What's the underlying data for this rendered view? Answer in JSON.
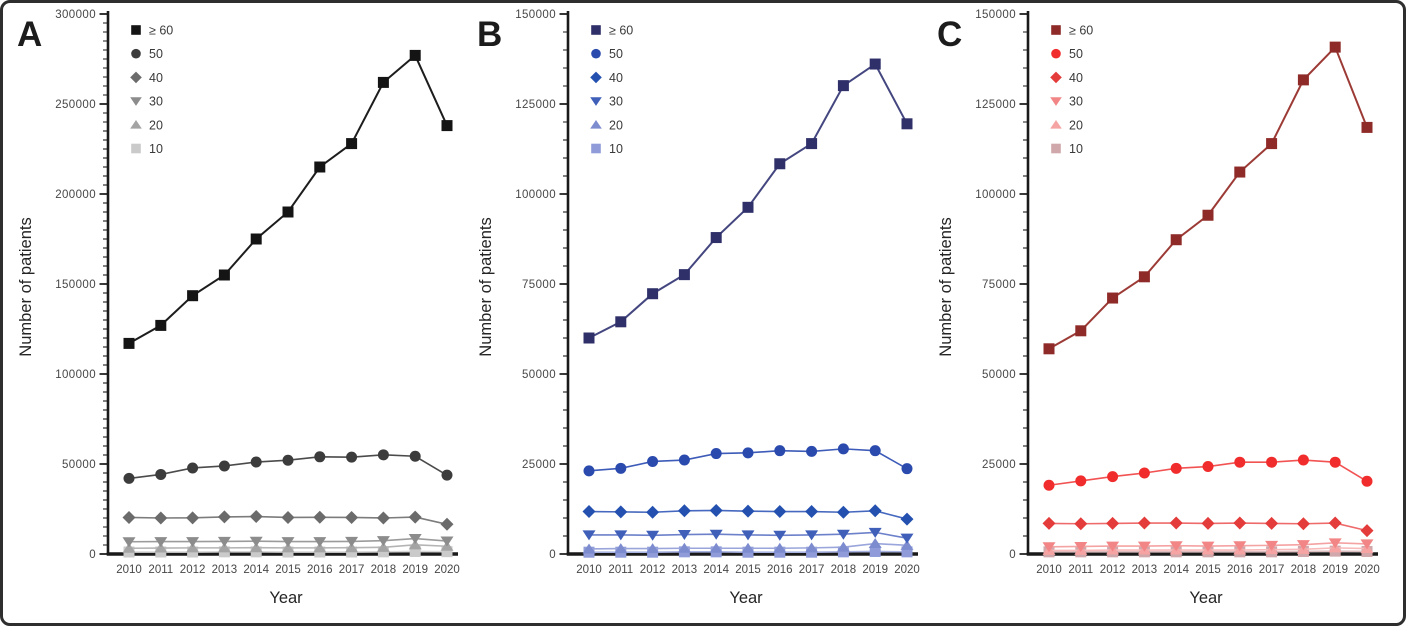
{
  "figure": {
    "background": "#ffffff",
    "border_color": "#2e2e2e"
  },
  "chart_data": [
    {
      "type": "line",
      "panel": "A",
      "xlabel": "Year",
      "ylabel": "Number of patients",
      "x": [
        "2010",
        "2011",
        "2012",
        "2013",
        "2014",
        "2015",
        "2016",
        "2017",
        "2018",
        "2019",
        "2020"
      ],
      "ylim": [
        0,
        300000
      ],
      "y_major_step": 50000,
      "y_minor_step": 5000,
      "y_tick_labels": [
        "0",
        "50000",
        "100000",
        "150000",
        "200000",
        "250000",
        "300000"
      ],
      "grid": false,
      "legend_position": "top-left-inside",
      "legend_order": [
        "≥ 60",
        "50",
        "40",
        "30",
        "20",
        "10"
      ],
      "series": [
        {
          "name": "≥ 60",
          "marker": "square",
          "color": "#141414",
          "line_color": "#1d1d1d",
          "values": [
            117000,
            127000,
            143500,
            155000,
            175000,
            190000,
            215000,
            228000,
            262000,
            277000,
            238000
          ]
        },
        {
          "name": "50",
          "marker": "circle",
          "color": "#3c3c3c",
          "line_color": "#4b4b4b",
          "values": [
            42000,
            44200,
            47800,
            48900,
            51100,
            52100,
            54000,
            53800,
            55100,
            54300,
            43800
          ]
        },
        {
          "name": "40",
          "marker": "diamond",
          "color": "#6b6b6b",
          "line_color": "#7c7c7c",
          "values": [
            20300,
            20000,
            20100,
            20600,
            20800,
            20300,
            20400,
            20300,
            20000,
            20500,
            16500
          ]
        },
        {
          "name": "30",
          "marker": "triangle-down",
          "color": "#8c8c8c",
          "line_color": "#9b9b9b",
          "values": [
            6800,
            6900,
            6900,
            7000,
            7100,
            6900,
            6900,
            7000,
            7400,
            8600,
            7200
          ]
        },
        {
          "name": "20",
          "marker": "triangle-up",
          "color": "#a4a4a4",
          "line_color": "#b4b4b4",
          "values": [
            3200,
            3300,
            3400,
            3400,
            3500,
            3400,
            3400,
            3500,
            3700,
            5100,
            4300
          ]
        },
        {
          "name": "10",
          "marker": "square",
          "color": "#cacaca",
          "line_color": "#d6d6d6",
          "values": [
            1100,
            1100,
            1100,
            1200,
            1200,
            1100,
            1100,
            1100,
            1200,
            1400,
            1300
          ]
        }
      ]
    },
    {
      "type": "line",
      "panel": "B",
      "xlabel": "Year",
      "ylabel": "Number of patients",
      "x": [
        "2010",
        "2011",
        "2012",
        "2013",
        "2014",
        "2015",
        "2016",
        "2017",
        "2018",
        "2019",
        "2020"
      ],
      "ylim": [
        0,
        150000
      ],
      "y_major_step": 25000,
      "y_minor_step": 5000,
      "y_tick_labels": [
        "0",
        "25000",
        "50000",
        "75000",
        "100000",
        "125000",
        "150000"
      ],
      "grid": false,
      "legend_position": "top-left-inside",
      "legend_order": [
        "≥ 60",
        "50",
        "40",
        "30",
        "20",
        "10"
      ],
      "series": [
        {
          "name": "≥ 60",
          "marker": "square",
          "color": "#2f3069",
          "line_color": "#44467f",
          "values": [
            60000,
            64500,
            72300,
            77600,
            87900,
            96300,
            108400,
            114000,
            130100,
            136100,
            119500
          ]
        },
        {
          "name": "50",
          "marker": "circle",
          "color": "#2a4aad",
          "line_color": "#3d5bb8",
          "values": [
            23100,
            23800,
            25700,
            26100,
            27900,
            28100,
            28700,
            28500,
            29200,
            28700,
            23700
          ]
        },
        {
          "name": "40",
          "marker": "diamond",
          "color": "#2451b0",
          "line_color": "#4668be",
          "values": [
            11800,
            11700,
            11600,
            12000,
            12100,
            11900,
            11800,
            11800,
            11600,
            12000,
            9700
          ]
        },
        {
          "name": "30",
          "marker": "triangle-down",
          "color": "#3f5fb9",
          "line_color": "#6d81ca",
          "values": [
            5300,
            5300,
            5200,
            5400,
            5500,
            5300,
            5200,
            5300,
            5500,
            6000,
            4400
          ]
        },
        {
          "name": "20",
          "marker": "triangle-up",
          "color": "#7d8ccf",
          "line_color": "#99a5db",
          "values": [
            1400,
            1500,
            1500,
            1600,
            1600,
            1600,
            1600,
            1700,
            1900,
            2900,
            2400
          ]
        },
        {
          "name": "10",
          "marker": "square",
          "color": "#8f9cd9",
          "line_color": "#a8b2e1",
          "values": [
            500,
            500,
            500,
            600,
            600,
            500,
            500,
            500,
            600,
            700,
            600
          ]
        }
      ]
    },
    {
      "type": "line",
      "panel": "C",
      "xlabel": "Year",
      "ylabel": "Number of patients",
      "x": [
        "2010",
        "2011",
        "2012",
        "2013",
        "2014",
        "2015",
        "2016",
        "2017",
        "2018",
        "2019",
        "2020"
      ],
      "ylim": [
        0,
        150000
      ],
      "y_major_step": 25000,
      "y_minor_step": 5000,
      "y_tick_labels": [
        "0",
        "25000",
        "50000",
        "75000",
        "100000",
        "125000",
        "150000"
      ],
      "grid": false,
      "legend_position": "top-left-inside",
      "legend_order": [
        "≥ 60",
        "50",
        "40",
        "30",
        "20",
        "10"
      ],
      "series": [
        {
          "name": "≥ 60",
          "marker": "square",
          "color": "#8e2a27",
          "line_color": "#9c3b36",
          "values": [
            57000,
            62000,
            71100,
            77000,
            87300,
            94100,
            106100,
            114000,
            131700,
            140800,
            118500
          ]
        },
        {
          "name": "50",
          "marker": "circle",
          "color": "#f12c2c",
          "line_color": "#f25252",
          "values": [
            19100,
            20300,
            21500,
            22500,
            23800,
            24300,
            25500,
            25500,
            26100,
            25500,
            20200
          ]
        },
        {
          "name": "40",
          "marker": "diamond",
          "color": "#e43b3b",
          "line_color": "#ef6a6a",
          "values": [
            8500,
            8400,
            8500,
            8600,
            8600,
            8500,
            8600,
            8500,
            8400,
            8600,
            6500
          ]
        },
        {
          "name": "30",
          "marker": "triangle-down",
          "color": "#f28585",
          "line_color": "#f5a2a2",
          "values": [
            2000,
            2100,
            2200,
            2200,
            2300,
            2200,
            2300,
            2400,
            2600,
            3100,
            2800
          ]
        },
        {
          "name": "20",
          "marker": "triangle-up",
          "color": "#f5a3a3",
          "line_color": "#f8baba",
          "values": [
            1000,
            1000,
            1100,
            1100,
            1100,
            1100,
            1100,
            1200,
            1300,
            1700,
            1500
          ]
        },
        {
          "name": "10",
          "marker": "square",
          "color": "#d0a7aa",
          "line_color": "#dcbec0",
          "values": [
            600,
            600,
            600,
            600,
            600,
            600,
            600,
            600,
            700,
            800,
            700
          ]
        }
      ]
    }
  ]
}
